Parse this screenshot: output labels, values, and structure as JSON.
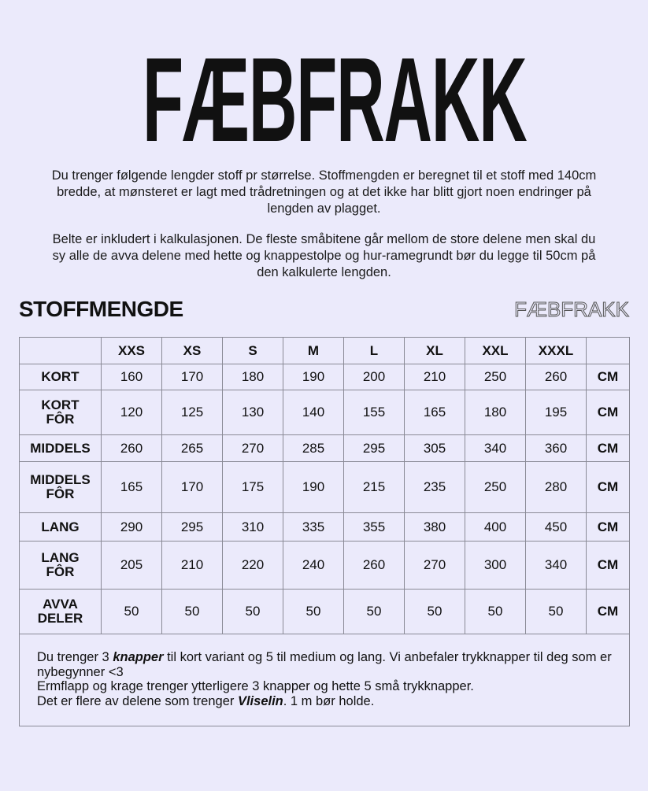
{
  "brand": "FÆBFRAKK",
  "intro": {
    "p1": "Du trenger følgende lengder stoff pr størrelse. Stoffmengden er beregnet til et stoff med 140cm bredde, at mønsteret er lagt med trådretningen og at det ikke har blitt gjort noen endringer på lengden av plagget.",
    "p2": "Belte er inkludert i kalkulasjonen. De fleste småbitene går mellom de store delene men skal du sy alle de avva delene med hette og knappestolpe og hur-ramegrundt bør du legge til 50cm på den kalkulerte lengden."
  },
  "section_title": "STOFFMENGDE",
  "table": {
    "sizes": [
      "XXS",
      "XS",
      "S",
      "M",
      "L",
      "XL",
      "XXL",
      "XXXL"
    ],
    "unit": "CM",
    "rows": [
      {
        "label": [
          "KORT"
        ],
        "values": [
          "160",
          "170",
          "180",
          "190",
          "200",
          "210",
          "250",
          "260"
        ],
        "h": 33
      },
      {
        "label": [
          "KORT",
          "FÔR"
        ],
        "values": [
          "120",
          "125",
          "130",
          "140",
          "155",
          "165",
          "180",
          "195"
        ],
        "h": 57
      },
      {
        "label": [
          "MIDDELS"
        ],
        "values": [
          "260",
          "265",
          "270",
          "285",
          "295",
          "305",
          "340",
          "360"
        ],
        "h": 34
      },
      {
        "label": [
          "MIDDELS",
          "FÔR"
        ],
        "values": [
          "165",
          "170",
          "175",
          "190",
          "215",
          "235",
          "250",
          "280"
        ],
        "h": 65
      },
      {
        "label": [
          "LANG"
        ],
        "values": [
          "290",
          "295",
          "310",
          "335",
          "355",
          "380",
          "400",
          "450"
        ],
        "h": 36
      },
      {
        "label": [
          "LANG",
          "FÔR"
        ],
        "values": [
          "205",
          "210",
          "220",
          "240",
          "260",
          "270",
          "300",
          "340"
        ],
        "h": 61
      },
      {
        "label": [
          "AVVA",
          "DELER"
        ],
        "values": [
          "50",
          "50",
          "50",
          "50",
          "50",
          "50",
          "50",
          "50"
        ],
        "h": 57
      }
    ]
  },
  "notes": {
    "l1a": "Du trenger 3 ",
    "l1b": "knapper",
    "l1c": " til kort variant og 5 til medium og lang. Vi anbefaler trykknapper til deg som er nybegynner <3",
    "l2": "Ermflapp og krage trenger ytterligere 3 knapper og hette 5 små trykknapper.",
    "l3a": "Det er flere av delene som trenger ",
    "l3b": "Vliselin",
    "l3c": ". 1 m bør holde."
  }
}
